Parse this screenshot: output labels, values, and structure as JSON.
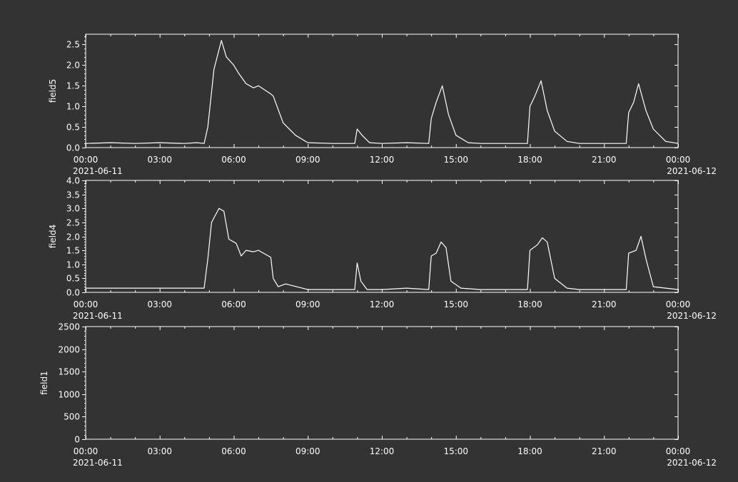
{
  "colors": {
    "background": "#333333",
    "foreground": "#ffffff"
  },
  "chart_data": [
    {
      "type": "line",
      "ylabel": "field5",
      "ylim": [
        0,
        2.75
      ],
      "yticks": [
        0.0,
        0.5,
        1.0,
        1.5,
        2.0,
        2.5
      ],
      "ytick_labels": [
        "0.0",
        "0.5",
        "1.0",
        "1.5",
        "2.0",
        "2.5"
      ],
      "xlim": [
        "2021-06-11 00:00",
        "2021-06-12 00:00"
      ],
      "xtick_labels": [
        "00:00",
        "03:00",
        "06:00",
        "09:00",
        "12:00",
        "15:00",
        "18:00",
        "21:00",
        "00:00"
      ],
      "xdate_labels": [
        "2021-06-11",
        "2021-06-12"
      ],
      "series": [
        {
          "x_hours": [
            0,
            1,
            2,
            3,
            4,
            4.5,
            4.8,
            4.95,
            5.2,
            5.5,
            5.7,
            6.0,
            6.2,
            6.5,
            6.8,
            7.0,
            7.5,
            7.6,
            8.0,
            8.5,
            9,
            10,
            10.9,
            11.0,
            11.2,
            11.5,
            12,
            13,
            13.9,
            14.0,
            14.2,
            14.45,
            14.7,
            15.0,
            15.5,
            16,
            17,
            17.9,
            18.0,
            18.2,
            18.45,
            18.7,
            19.0,
            19.5,
            20,
            21,
            21.9,
            22.0,
            22.2,
            22.4,
            22.7,
            23.0,
            23.5,
            24
          ],
          "values": [
            0.1,
            0.12,
            0.1,
            0.12,
            0.1,
            0.12,
            0.1,
            0.5,
            1.9,
            2.6,
            2.2,
            2.0,
            1.8,
            1.55,
            1.45,
            1.5,
            1.3,
            1.25,
            0.6,
            0.3,
            0.12,
            0.1,
            0.1,
            0.45,
            0.3,
            0.12,
            0.1,
            0.12,
            0.1,
            0.7,
            1.1,
            1.5,
            0.8,
            0.3,
            0.12,
            0.1,
            0.1,
            0.1,
            1.0,
            1.25,
            1.62,
            0.9,
            0.4,
            0.15,
            0.1,
            0.1,
            0.1,
            0.85,
            1.1,
            1.55,
            0.9,
            0.45,
            0.15,
            0.1
          ]
        }
      ]
    },
    {
      "type": "line",
      "ylabel": "field4",
      "ylim": [
        0,
        4.0
      ],
      "yticks": [
        0.0,
        0.5,
        1.0,
        1.5,
        2.0,
        2.5,
        3.0,
        3.5,
        4.0
      ],
      "ytick_labels": [
        "0.0",
        "0.5",
        "1.0",
        "1.5",
        "2.0",
        "2.5",
        "3.0",
        "3.5",
        "4.0"
      ],
      "xlim": [
        "2021-06-11 00:00",
        "2021-06-12 00:00"
      ],
      "xtick_labels": [
        "00:00",
        "03:00",
        "06:00",
        "09:00",
        "12:00",
        "15:00",
        "18:00",
        "21:00",
        "00:00"
      ],
      "xdate_labels": [
        "2021-06-11",
        "2021-06-12"
      ],
      "series": [
        {
          "x_hours": [
            0,
            1,
            2,
            3,
            4,
            4.8,
            4.95,
            5.1,
            5.4,
            5.6,
            5.8,
            6.1,
            6.3,
            6.5,
            6.8,
            7.0,
            7.5,
            7.6,
            7.8,
            8.1,
            9,
            10,
            10.9,
            11.0,
            11.15,
            11.4,
            12,
            13,
            13.9,
            14.0,
            14.2,
            14.4,
            14.6,
            14.8,
            15.2,
            16,
            17,
            17.9,
            18.0,
            18.3,
            18.5,
            18.7,
            19.0,
            19.5,
            20,
            21,
            21.9,
            22.0,
            22.3,
            22.5,
            22.7,
            23.0,
            23.5,
            24
          ],
          "values": [
            0.15,
            0.15,
            0.15,
            0.15,
            0.15,
            0.15,
            1.2,
            2.5,
            3.0,
            2.9,
            1.9,
            1.75,
            1.3,
            1.5,
            1.45,
            1.5,
            1.25,
            0.5,
            0.2,
            0.3,
            0.1,
            0.1,
            0.1,
            1.05,
            0.4,
            0.1,
            0.1,
            0.15,
            0.1,
            1.3,
            1.4,
            1.8,
            1.6,
            0.4,
            0.15,
            0.1,
            0.1,
            0.1,
            1.5,
            1.7,
            1.95,
            1.8,
            0.5,
            0.15,
            0.1,
            0.1,
            0.1,
            1.4,
            1.5,
            2.0,
            1.2,
            0.2,
            0.15,
            0.1
          ]
        }
      ]
    },
    {
      "type": "line",
      "ylabel": "field1",
      "ylim": [
        0,
        2500
      ],
      "yticks": [
        0,
        500,
        1000,
        1500,
        2000,
        2500
      ],
      "ytick_labels": [
        "0",
        "500",
        "1000",
        "1500",
        "2000",
        "2500"
      ],
      "xlim": [
        "2021-06-11 00:00",
        "2021-06-12 00:00"
      ],
      "xtick_labels": [
        "00:00",
        "03:00",
        "06:00",
        "09:00",
        "12:00",
        "15:00",
        "18:00",
        "21:00",
        "00:00"
      ],
      "xdate_labels": [
        "2021-06-11",
        "2021-06-12"
      ],
      "series": []
    }
  ]
}
